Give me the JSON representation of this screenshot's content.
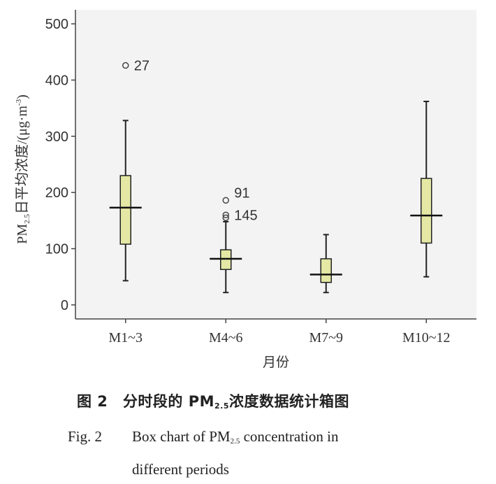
{
  "chart_data": {
    "type": "box",
    "ylabel_prefix": "PM",
    "ylabel_sub": "2.5",
    "ylabel_rest": "日平均浓度/(μg·m",
    "ylabel_sup": "-3",
    "ylabel_end": ")",
    "xlabel": "月份",
    "ylim": [
      -25,
      525
    ],
    "yticks": [
      0,
      100,
      200,
      300,
      400,
      500
    ],
    "grid": false,
    "categories": [
      "M1~3",
      "M4~6",
      "M7~9",
      "M10~12"
    ],
    "boxes": [
      {
        "category": "M1~3",
        "whisker_low": 43,
        "q1": 108,
        "median": 173,
        "q3": 230,
        "whisker_high": 328,
        "outliers": [
          {
            "value": 426,
            "label": "27"
          }
        ]
      },
      {
        "category": "M4~6",
        "whisker_low": 22,
        "q1": 63,
        "median": 82,
        "q3": 98,
        "whisker_high": 148,
        "outliers": [
          {
            "value": 186,
            "label": "91"
          },
          {
            "value": 160,
            "label": "145"
          },
          {
            "value": 155,
            "label": ""
          }
        ]
      },
      {
        "category": "M7~9",
        "whisker_low": 22,
        "q1": 40,
        "median": 54,
        "q3": 82,
        "whisker_high": 125,
        "outliers": []
      },
      {
        "category": "M10~12",
        "whisker_low": 50,
        "q1": 110,
        "median": 159,
        "q3": 225,
        "whisker_high": 362,
        "outliers": []
      }
    ],
    "box_color": "#e4e8a4"
  },
  "caption": {
    "cn_prefix": "图 2　分时段的 PM",
    "cn_sub": "2.5",
    "cn_suffix": "浓度数据统计箱图",
    "en_num": "Fig. 2",
    "en_line1_a": "Box chart of PM",
    "en_sub": "2.5",
    "en_line1_b": " concentration in",
    "en_line2": "different periods"
  }
}
